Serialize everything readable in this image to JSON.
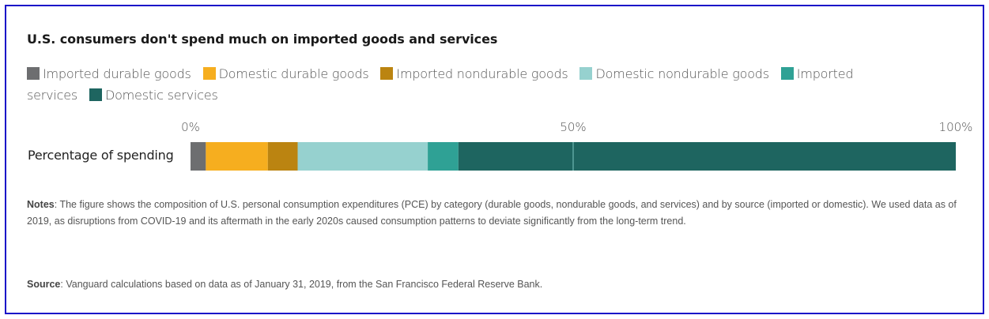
{
  "chart_data": {
    "type": "bar",
    "orientation": "horizontal",
    "stacked": true,
    "title": "U.S. consumers don't spend much on imported goods and services",
    "categories": [
      "Percentage of spending"
    ],
    "series": [
      {
        "name": "Imported durable goods",
        "values": [
          2.0
        ],
        "color": "#6d6e70"
      },
      {
        "name": "Domestic durable goods",
        "values": [
          8.1
        ],
        "color": "#f6ae1f"
      },
      {
        "name": "Imported nondurable goods",
        "values": [
          3.9
        ],
        "color": "#bb8411"
      },
      {
        "name": "Domestic nondurable goods",
        "values": [
          17.0
        ],
        "color": "#96d1cf"
      },
      {
        "name": "Imported services",
        "values": [
          4.0
        ],
        "color": "#2fa195"
      },
      {
        "name": "Domestic services",
        "values": [
          65.0
        ],
        "color": "#1e6560"
      }
    ],
    "xlabel": "",
    "ylabel": "",
    "xlim": [
      0,
      100
    ],
    "xticks": [
      0,
      50,
      100
    ],
    "xtick_labels": [
      "0%",
      "50%",
      "100%"
    ],
    "grid": true,
    "legend_position": "top"
  },
  "notes": {
    "label": "Notes",
    "text": ": The figure shows the composition of U.S. personal consumption expenditures (PCE) by category (durable goods, nondurable goods, and services) and by source (imported or domestic). We used data as of 2019, as disruptions from COVID-19 and its aftermath in the early 2020s caused consumption patterns to deviate significantly from the long-term trend."
  },
  "source": {
    "label": "Source",
    "text": ": Vanguard calculations based on data as of January 31, 2019, from the San Francisco Federal Reserve Bank."
  },
  "colors": {
    "frame_border": "#1a10c8",
    "gridline": "#6fb8b2"
  }
}
